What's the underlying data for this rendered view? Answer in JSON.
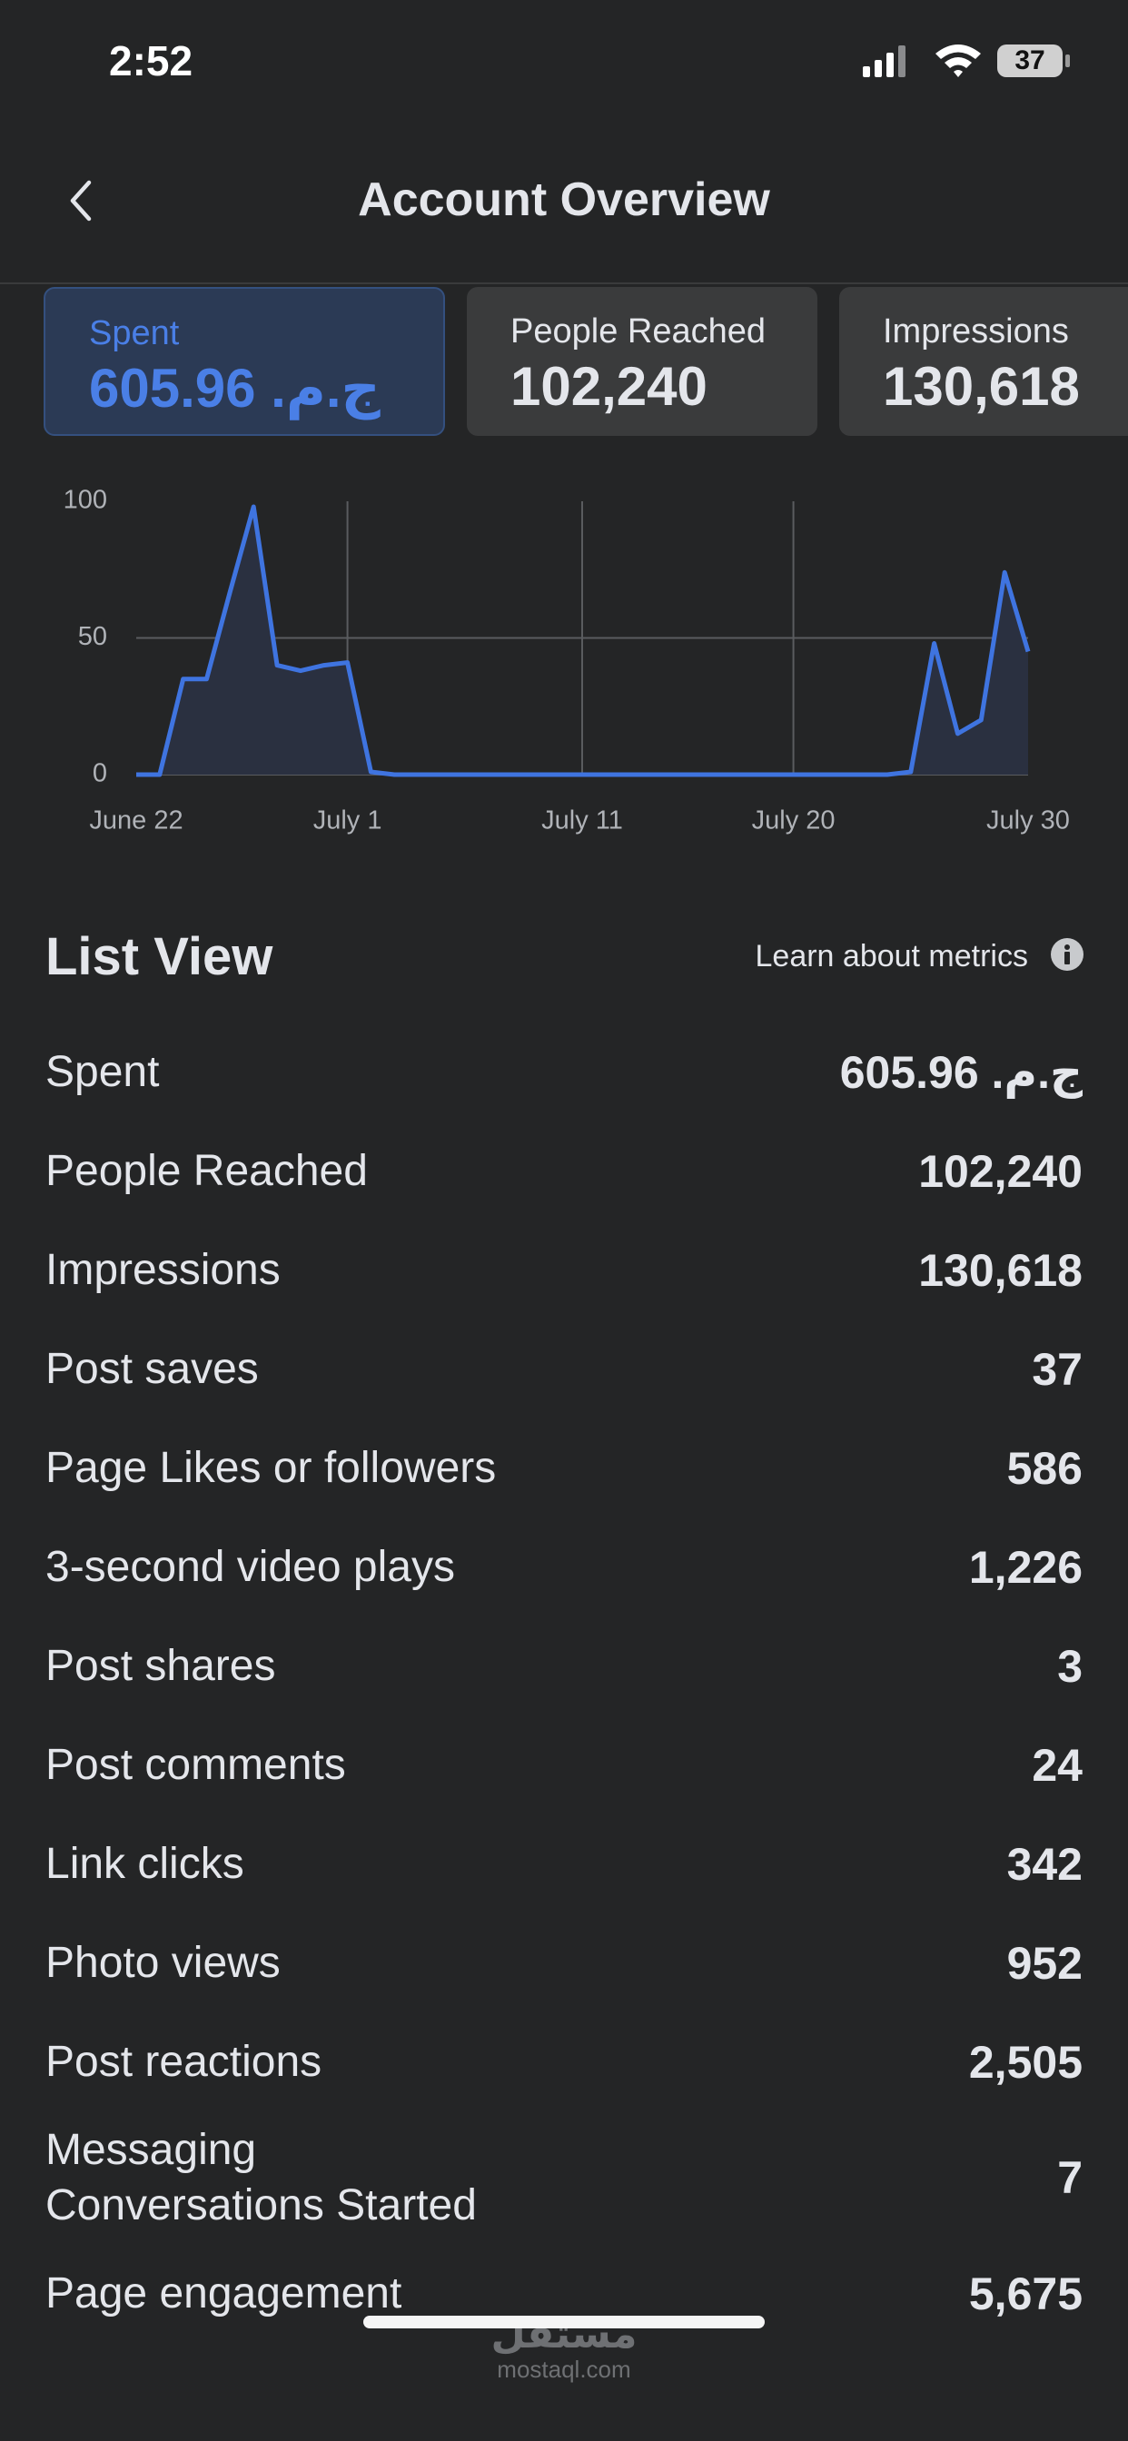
{
  "status_bar": {
    "time": "2:52",
    "battery": "37"
  },
  "header": {
    "title": "Account Overview"
  },
  "cards": [
    {
      "label": "Spent",
      "value": "ج.م. 605.96"
    },
    {
      "label": "People Reached",
      "value": "102,240"
    },
    {
      "label": "Impressions",
      "value": "130,618"
    }
  ],
  "chart_data": {
    "type": "line",
    "color": "#3f74e0",
    "categories": [
      "June 22",
      null,
      null,
      null,
      null,
      null,
      null,
      null,
      null,
      "July 1",
      null,
      null,
      null,
      null,
      null,
      null,
      null,
      null,
      null,
      "July 11",
      null,
      null,
      null,
      null,
      null,
      null,
      null,
      null,
      "July 20",
      null,
      null,
      null,
      null,
      null,
      null,
      null,
      null,
      null,
      "July 30"
    ],
    "values": [
      0,
      0,
      35,
      35,
      67,
      98,
      40,
      38,
      40,
      41,
      1,
      0,
      0,
      0,
      0,
      0,
      0,
      0,
      0,
      0,
      0,
      0,
      0,
      0,
      0,
      0,
      0,
      0,
      0,
      0,
      0,
      0,
      0,
      1,
      48,
      15,
      20,
      74,
      45
    ],
    "ylim": [
      0,
      100
    ],
    "yticks": [
      0,
      50,
      100
    ],
    "grid": true
  },
  "list_view": {
    "title": "List View",
    "link": "Learn about metrics",
    "rows": [
      {
        "label": "Spent",
        "value": "ج.م. 605.96"
      },
      {
        "label": "People Reached",
        "value": "102,240"
      },
      {
        "label": "Impressions",
        "value": "130,618"
      },
      {
        "label": "Post saves",
        "value": "37"
      },
      {
        "label": "Page Likes or followers",
        "value": "586"
      },
      {
        "label": "3-second video plays",
        "value": "1,226"
      },
      {
        "label": "Post shares",
        "value": "3"
      },
      {
        "label": "Post comments",
        "value": "24"
      },
      {
        "label": "Link clicks",
        "value": "342"
      },
      {
        "label": "Photo views",
        "value": "952"
      },
      {
        "label": "Post reactions",
        "value": "2,505"
      },
      {
        "label": "Messaging\nConversations Started",
        "value": "7"
      },
      {
        "label": "Page engagement",
        "value": "5,675"
      }
    ]
  },
  "watermark": {
    "arabic": "مستقل",
    "site": "mostaql.com"
  }
}
